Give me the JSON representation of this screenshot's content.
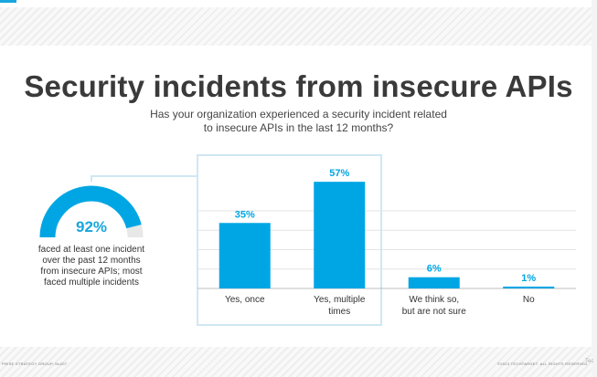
{
  "title": "Security incidents from insecure APIs",
  "subtitle_lines": [
    "Has your organization experienced a security incident related",
    "to insecure APIs in the last 12 months?"
  ],
  "highlight": {
    "value_label": "92%",
    "value": 92,
    "description": "faced at least one incident over the past 12 months from insecure APIs; most faced multiple incidents"
  },
  "footer": {
    "source": "PRISE STRATEGY GROUP, M•207",
    "copyright": "©2023 TECHTARGET. ALL RIGHTS RESERVED",
    "mark": "Tec"
  },
  "colors": {
    "bar": "#00a6e4",
    "gauge_track": "#e8e8e8",
    "highlight_box": "#cfe8f4",
    "title": "#3a3a3a"
  },
  "chart_data": {
    "type": "bar",
    "categories": [
      [
        "Yes, once"
      ],
      [
        "Yes, multiple",
        "times"
      ],
      [
        "We think so,",
        "but are not sure"
      ],
      [
        "No"
      ]
    ],
    "values": [
      35,
      57,
      6,
      1
    ],
    "data_labels": [
      "35%",
      "57%",
      "6%",
      "1%"
    ],
    "ylim": [
      0,
      60
    ],
    "grid": true,
    "highlighted_categories": [
      0,
      1
    ]
  }
}
